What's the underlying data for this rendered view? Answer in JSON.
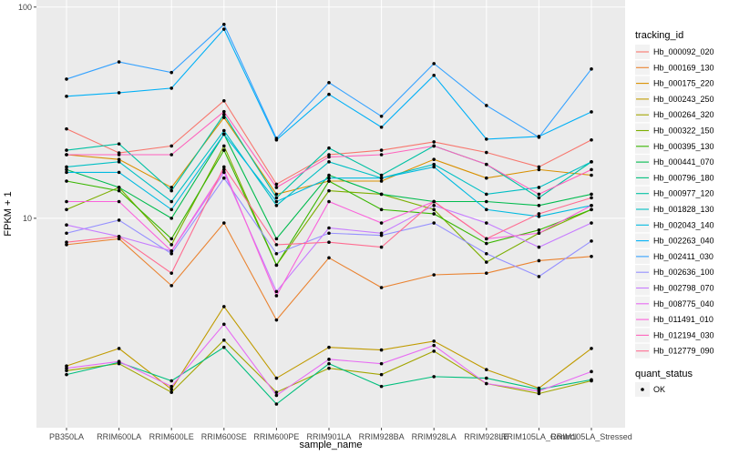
{
  "chart_data": {
    "type": "line",
    "x_label": "sample_name",
    "y_label": "FPKM + 1",
    "log_y": true,
    "grid": true,
    "legend_title": "tracking_id",
    "legend_position": "right",
    "point_legend_title": "quant_status",
    "point_legend_label": "OK",
    "point_color": "#000000",
    "categories": [
      "PB350LA",
      "RRIM600LA",
      "RRIM600LE",
      "RRIM600SE",
      "RRIM600PE",
      "RRIM901LA",
      "RRIM928BA",
      "RRIM928LA",
      "RRIM928LE",
      "RRIM105LA_Control",
      "RRIM105LA_Stressed"
    ],
    "ylim": [
      1.02,
      108
    ],
    "yticks": [
      10,
      100
    ],
    "series": [
      {
        "name": "Hb_000092_020",
        "color": "#F8766D",
        "values": [
          26.5,
          20.4,
          22,
          36,
          14.5,
          20,
          21,
          23,
          20.5,
          17.5,
          23.5
        ]
      },
      {
        "name": "Hb_000169_130",
        "color": "#EA8331",
        "values": [
          7.5,
          8,
          4.8,
          9.5,
          3.3,
          6.5,
          4.7,
          5.4,
          5.5,
          6.3,
          6.6
        ]
      },
      {
        "name": "Hb_000175_220",
        "color": "#D89000",
        "values": [
          20,
          19,
          14,
          30,
          13,
          15,
          15,
          19,
          15.5,
          17,
          16
        ]
      },
      {
        "name": "Hb_000243_250",
        "color": "#C09B00",
        "values": [
          2.0,
          2.42,
          1.55,
          3.82,
          1.75,
          2.45,
          2.38,
          2.62,
          1.92,
          1.57,
          2.42
        ]
      },
      {
        "name": "Hb_000264_320",
        "color": "#A3A500",
        "values": [
          1.9,
          2.05,
          1.5,
          2.65,
          1.5,
          1.95,
          1.82,
          2.35,
          1.65,
          1.48,
          1.7
        ]
      },
      {
        "name": "Hb_000322_150",
        "color": "#7CAE00",
        "values": [
          11,
          14,
          7.5,
          22,
          6,
          13.5,
          13,
          11,
          6.2,
          8.5,
          11
        ]
      },
      {
        "name": "Hb_000395_130",
        "color": "#39B600",
        "values": [
          15,
          13.5,
          8,
          21,
          6,
          15,
          11,
          10.5,
          7.6,
          8.8,
          11
        ]
      },
      {
        "name": "Hb_000441_070",
        "color": "#00BB4E",
        "values": [
          17,
          14,
          10,
          25,
          8,
          16,
          13,
          12,
          12,
          11.5,
          13
        ]
      },
      {
        "name": "Hb_000796_180",
        "color": "#00BF7D",
        "values": [
          1.82,
          2.08,
          1.7,
          2.45,
          1.32,
          2.05,
          1.6,
          1.78,
          1.75,
          1.55,
          1.72
        ]
      },
      {
        "name": "Hb_000977_120",
        "color": "#00C1A3",
        "values": [
          21,
          22.5,
          13.5,
          31,
          12.5,
          21.5,
          16,
          22,
          18,
          12.5,
          18.5
        ]
      },
      {
        "name": "Hb_001828_130",
        "color": "#00BFC4",
        "values": [
          17.5,
          18.5,
          12,
          26,
          11.5,
          18.5,
          15.5,
          18,
          13,
          14,
          18.5
        ]
      },
      {
        "name": "Hb_002043_140",
        "color": "#00BAE0",
        "values": [
          16.5,
          16.5,
          11,
          25,
          12,
          15.5,
          15.5,
          17.5,
          11,
          10.2,
          11.5
        ]
      },
      {
        "name": "Hb_002263_040",
        "color": "#00B0F6",
        "values": [
          37.8,
          39.3,
          41.3,
          78.6,
          23.5,
          38.6,
          27,
          47.5,
          23.7,
          24.4,
          31.9
        ]
      },
      {
        "name": "Hb_002411_030",
        "color": "#35A2FF",
        "values": [
          45.6,
          55,
          49,
          82.8,
          23.9,
          43.9,
          30.4,
          54,
          34.2,
          24.2,
          50.9
        ]
      },
      {
        "name": "Hb_002636_100",
        "color": "#9590FF",
        "values": [
          8.5,
          9.8,
          6.8,
          15.5,
          6.8,
          8.5,
          8.3,
          9.5,
          6.8,
          5.3,
          7.8
        ]
      },
      {
        "name": "Hb_002798_070",
        "color": "#C77CFF",
        "values": [
          9.3,
          8.2,
          7,
          16.5,
          4.5,
          9,
          8.5,
          11.5,
          9.5,
          7.3,
          9.5
        ]
      },
      {
        "name": "Hb_008775_040",
        "color": "#E76BF3",
        "values": [
          1.95,
          2.1,
          1.6,
          3.15,
          1.45,
          2.15,
          2.05,
          2.5,
          1.65,
          1.52,
          1.88
        ]
      },
      {
        "name": "Hb_011491_010",
        "color": "#FA62DB",
        "values": [
          12,
          12,
          7,
          17,
          4.3,
          12,
          9.5,
          12,
          8,
          8.5,
          11.5
        ]
      },
      {
        "name": "Hb_012194_030",
        "color": "#FF62BC",
        "values": [
          20,
          20,
          20,
          32,
          14,
          19.5,
          20,
          22,
          18,
          13,
          17
        ]
      },
      {
        "name": "Hb_012779_090",
        "color": "#FF6C91",
        "values": [
          7.7,
          8.2,
          5.5,
          17.5,
          7.5,
          7.7,
          7.3,
          12,
          8,
          10.5,
          12.5
        ]
      }
    ]
  }
}
